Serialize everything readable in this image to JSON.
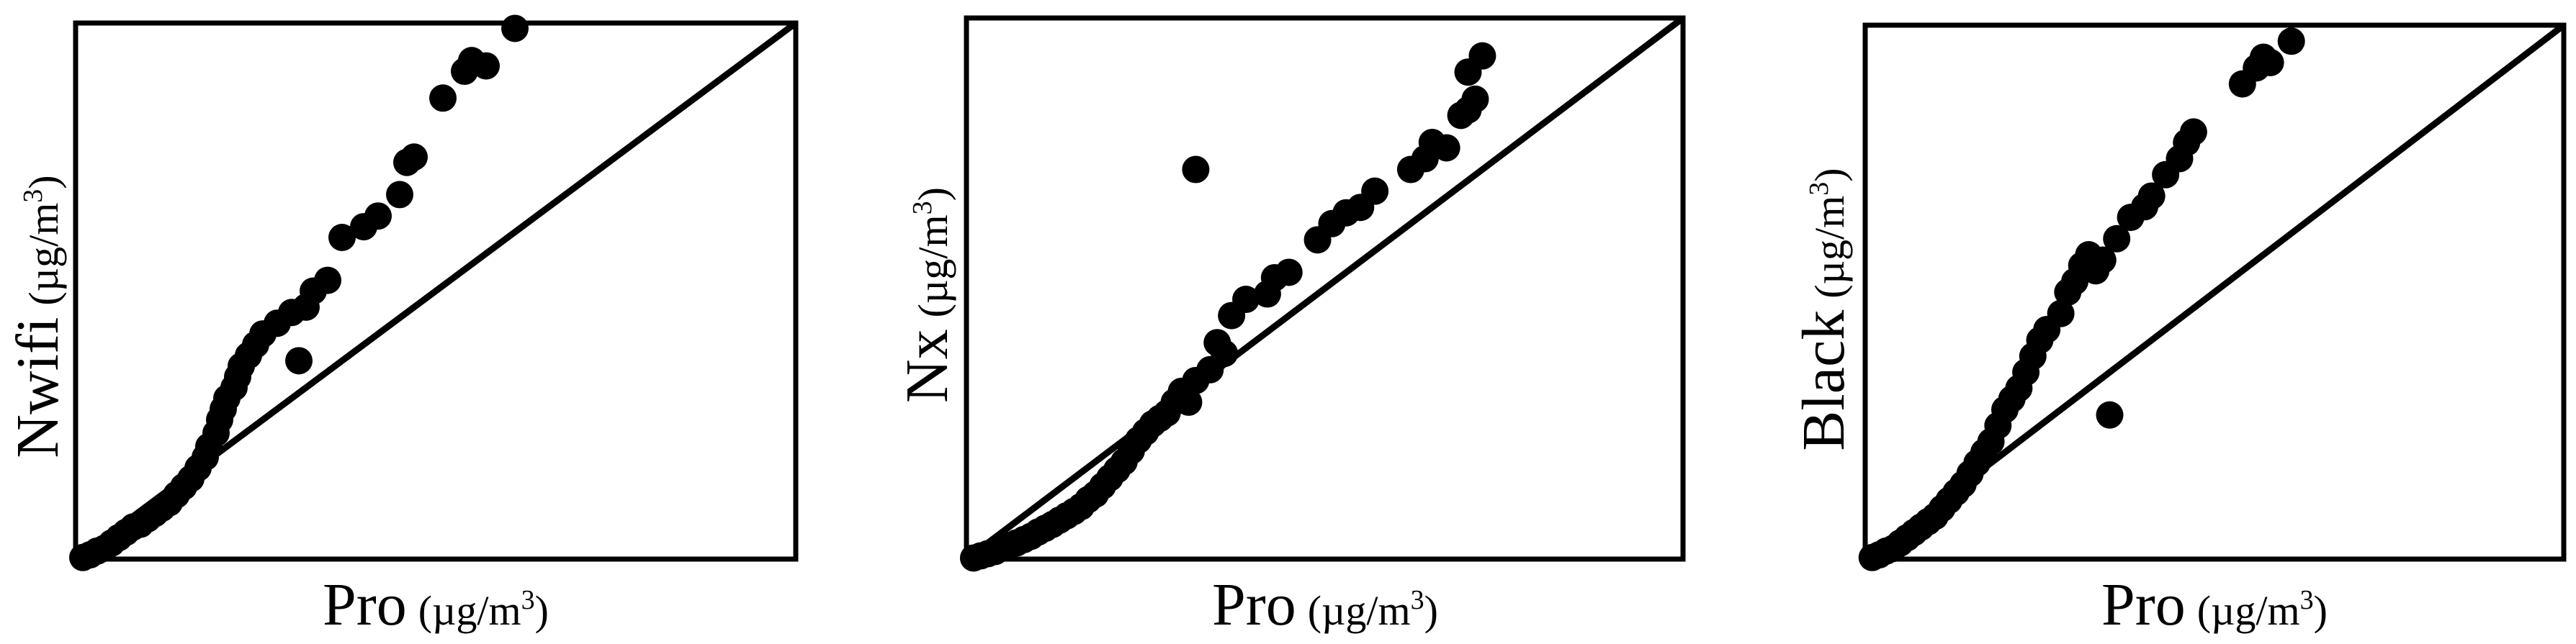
{
  "chart_data": [
    {
      "type": "scatter",
      "title": "",
      "xlabel_main": "Pro",
      "xlabel_unit": "(µg/m",
      "xlabel_sup": "3",
      "xlabel_close": ")",
      "ylabel_main": "Nwifi",
      "ylabel_unit": "(µg/m",
      "ylabel_sup": "3",
      "ylabel_close": ")",
      "xlim": [
        0,
        1
      ],
      "ylim": [
        0,
        1
      ],
      "reference_line": "y=x",
      "grid": false,
      "points": [
        [
          0.01,
          0.003
        ],
        [
          0.02,
          0.008
        ],
        [
          0.03,
          0.015
        ],
        [
          0.04,
          0.02
        ],
        [
          0.05,
          0.03
        ],
        [
          0.06,
          0.04
        ],
        [
          0.07,
          0.05
        ],
        [
          0.08,
          0.06
        ],
        [
          0.09,
          0.065
        ],
        [
          0.1,
          0.075
        ],
        [
          0.11,
          0.085
        ],
        [
          0.12,
          0.095
        ],
        [
          0.13,
          0.105
        ],
        [
          0.14,
          0.12
        ],
        [
          0.15,
          0.135
        ],
        [
          0.16,
          0.15
        ],
        [
          0.17,
          0.17
        ],
        [
          0.18,
          0.19
        ],
        [
          0.185,
          0.21
        ],
        [
          0.195,
          0.235
        ],
        [
          0.2,
          0.26
        ],
        [
          0.205,
          0.28
        ],
        [
          0.21,
          0.3
        ],
        [
          0.22,
          0.32
        ],
        [
          0.225,
          0.34
        ],
        [
          0.23,
          0.36
        ],
        [
          0.24,
          0.38
        ],
        [
          0.25,
          0.4
        ],
        [
          0.26,
          0.42
        ],
        [
          0.28,
          0.44
        ],
        [
          0.3,
          0.46
        ],
        [
          0.32,
          0.47
        ],
        [
          0.33,
          0.5
        ],
        [
          0.35,
          0.52
        ],
        [
          0.31,
          0.37
        ],
        [
          0.37,
          0.6
        ],
        [
          0.4,
          0.62
        ],
        [
          0.42,
          0.64
        ],
        [
          0.45,
          0.68
        ],
        [
          0.46,
          0.74
        ],
        [
          0.47,
          0.75
        ],
        [
          0.51,
          0.86
        ],
        [
          0.54,
          0.91
        ],
        [
          0.55,
          0.93
        ],
        [
          0.57,
          0.92
        ],
        [
          0.61,
          0.99
        ]
      ]
    },
    {
      "type": "scatter",
      "title": "",
      "xlabel_main": "Pro",
      "xlabel_unit": "(µg/m",
      "xlabel_sup": "3",
      "xlabel_close": ")",
      "ylabel_main": "Nx",
      "ylabel_unit": "(µg/m",
      "ylabel_sup": "3",
      "ylabel_close": ")",
      "xlim": [
        0,
        1
      ],
      "ylim": [
        0,
        1
      ],
      "reference_line": "y=x",
      "grid": false,
      "points": [
        [
          0.01,
          0.002
        ],
        [
          0.02,
          0.006
        ],
        [
          0.03,
          0.01
        ],
        [
          0.04,
          0.014
        ],
        [
          0.05,
          0.02
        ],
        [
          0.06,
          0.025
        ],
        [
          0.07,
          0.03
        ],
        [
          0.08,
          0.036
        ],
        [
          0.09,
          0.042
        ],
        [
          0.1,
          0.05
        ],
        [
          0.11,
          0.057
        ],
        [
          0.12,
          0.064
        ],
        [
          0.13,
          0.072
        ],
        [
          0.14,
          0.08
        ],
        [
          0.15,
          0.088
        ],
        [
          0.16,
          0.097
        ],
        [
          0.17,
          0.11
        ],
        [
          0.18,
          0.12
        ],
        [
          0.19,
          0.135
        ],
        [
          0.2,
          0.15
        ],
        [
          0.21,
          0.165
        ],
        [
          0.22,
          0.18
        ],
        [
          0.23,
          0.2
        ],
        [
          0.24,
          0.22
        ],
        [
          0.25,
          0.235
        ],
        [
          0.26,
          0.25
        ],
        [
          0.27,
          0.26
        ],
        [
          0.28,
          0.27
        ],
        [
          0.29,
          0.29
        ],
        [
          0.31,
          0.29
        ],
        [
          0.3,
          0.31
        ],
        [
          0.32,
          0.33
        ],
        [
          0.34,
          0.35
        ],
        [
          0.35,
          0.4
        ],
        [
          0.36,
          0.38
        ],
        [
          0.37,
          0.45
        ],
        [
          0.39,
          0.48
        ],
        [
          0.42,
          0.49
        ],
        [
          0.43,
          0.52
        ],
        [
          0.45,
          0.53
        ],
        [
          0.49,
          0.59
        ],
        [
          0.51,
          0.62
        ],
        [
          0.53,
          0.64
        ],
        [
          0.55,
          0.65
        ],
        [
          0.57,
          0.68
        ],
        [
          0.62,
          0.72
        ],
        [
          0.64,
          0.74
        ],
        [
          0.65,
          0.77
        ],
        [
          0.67,
          0.76
        ],
        [
          0.69,
          0.82
        ],
        [
          0.7,
          0.83
        ],
        [
          0.71,
          0.85
        ],
        [
          0.7,
          0.9
        ],
        [
          0.72,
          0.93
        ],
        [
          0.32,
          0.72
        ]
      ]
    },
    {
      "type": "scatter",
      "title": "",
      "xlabel_main": "Pro",
      "xlabel_unit": "(µg/m",
      "xlabel_sup": "3",
      "xlabel_close": ")",
      "ylabel_main": "Black",
      "ylabel_unit": "(µg/m",
      "ylabel_sup": "3",
      "ylabel_close": ")",
      "xlim": [
        0,
        1
      ],
      "ylim": [
        0,
        1
      ],
      "reference_line": "y=x",
      "grid": false,
      "points": [
        [
          0.01,
          0.003
        ],
        [
          0.02,
          0.008
        ],
        [
          0.03,
          0.015
        ],
        [
          0.04,
          0.02
        ],
        [
          0.05,
          0.03
        ],
        [
          0.06,
          0.04
        ],
        [
          0.07,
          0.05
        ],
        [
          0.08,
          0.06
        ],
        [
          0.09,
          0.07
        ],
        [
          0.1,
          0.08
        ],
        [
          0.11,
          0.095
        ],
        [
          0.12,
          0.11
        ],
        [
          0.13,
          0.125
        ],
        [
          0.14,
          0.14
        ],
        [
          0.15,
          0.16
        ],
        [
          0.16,
          0.18
        ],
        [
          0.17,
          0.2
        ],
        [
          0.18,
          0.22
        ],
        [
          0.19,
          0.25
        ],
        [
          0.2,
          0.28
        ],
        [
          0.21,
          0.3
        ],
        [
          0.22,
          0.32
        ],
        [
          0.23,
          0.35
        ],
        [
          0.24,
          0.38
        ],
        [
          0.25,
          0.41
        ],
        [
          0.26,
          0.43
        ],
        [
          0.28,
          0.46
        ],
        [
          0.29,
          0.5
        ],
        [
          0.3,
          0.52
        ],
        [
          0.31,
          0.55
        ],
        [
          0.32,
          0.57
        ],
        [
          0.33,
          0.54
        ],
        [
          0.34,
          0.56
        ],
        [
          0.36,
          0.6
        ],
        [
          0.38,
          0.64
        ],
        [
          0.4,
          0.66
        ],
        [
          0.41,
          0.68
        ],
        [
          0.43,
          0.72
        ],
        [
          0.45,
          0.75
        ],
        [
          0.46,
          0.78
        ],
        [
          0.47,
          0.8
        ],
        [
          0.54,
          0.89
        ],
        [
          0.56,
          0.92
        ],
        [
          0.57,
          0.94
        ],
        [
          0.58,
          0.93
        ],
        [
          0.61,
          0.97
        ],
        [
          0.35,
          0.27
        ]
      ]
    }
  ]
}
